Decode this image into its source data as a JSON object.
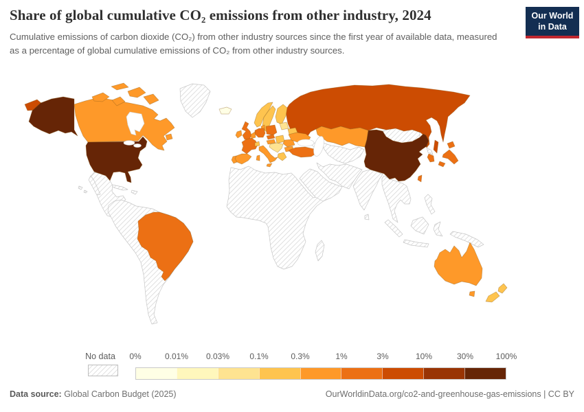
{
  "header": {
    "title": "Share of global cumulative CO₂ emissions from other industry, 2024",
    "subtitle": "Cumulative emissions of carbon dioxide (CO₂) from other industry sources since the first year of available data, measured as a percentage of global cumulative emissions of CO₂ from other industry sources.",
    "logo": {
      "line1": "Our World",
      "line2": "in Data",
      "bg_color": "#132e52",
      "accent_color": "#c0272f"
    }
  },
  "legend": {
    "no_data_label": "No data",
    "tick_labels": [
      "0%",
      "0.01%",
      "0.03%",
      "0.1%",
      "0.3%",
      "1%",
      "3%",
      "10%",
      "30%",
      "100%"
    ],
    "bin_colors": [
      "#ffffe5",
      "#fff7bc",
      "#fee391",
      "#fec44f",
      "#fe9929",
      "#ec7014",
      "#cc4c02",
      "#993404",
      "#662506"
    ]
  },
  "footer": {
    "source_label": "Data source:",
    "source_value": " Global Carbon Budget (2025)",
    "credit": "OurWorldinData.org/co2-and-greenhouse-gas-emissions | CC BY"
  },
  "map": {
    "no_data_border": "#c6c6c6",
    "colored_border": "#8a5a18",
    "water_border": "#cccccc",
    "regions": [
      {
        "id": "alaska",
        "bin": 8
      },
      {
        "id": "usa",
        "bin": 8
      },
      {
        "id": "china",
        "bin": 8
      },
      {
        "id": "russia",
        "bin": 6
      },
      {
        "id": "chukotka-west",
        "bin": 6
      },
      {
        "id": "sakhalin",
        "bin": 6
      },
      {
        "id": "canada",
        "bin": 4
      },
      {
        "id": "arctic-1",
        "bin": 4
      },
      {
        "id": "arctic-2",
        "bin": 4
      },
      {
        "id": "arctic-3",
        "bin": 4
      },
      {
        "id": "arctic-4",
        "bin": 4
      },
      {
        "id": "arctic-5",
        "bin": 4
      },
      {
        "id": "newfoundland",
        "bin": 4
      },
      {
        "id": "brazil",
        "bin": 5
      },
      {
        "id": "japan-hokkaido",
        "bin": 5
      },
      {
        "id": "japan-honshu",
        "bin": 5
      },
      {
        "id": "japan-kyushu",
        "bin": 5
      },
      {
        "id": "south-korea",
        "bin": 5
      },
      {
        "id": "taiwan",
        "bin": 5
      },
      {
        "id": "turkey",
        "bin": 5
      },
      {
        "id": "france",
        "bin": 5
      },
      {
        "id": "germany",
        "bin": 5
      },
      {
        "id": "poland",
        "bin": 5
      },
      {
        "id": "uk",
        "bin": 5
      },
      {
        "id": "czechia",
        "bin": 5
      },
      {
        "id": "kazakhstan",
        "bin": 4
      },
      {
        "id": "ukraine",
        "bin": 4
      },
      {
        "id": "australia",
        "bin": 4
      },
      {
        "id": "tasmania",
        "bin": 4
      },
      {
        "id": "spain",
        "bin": 4
      },
      {
        "id": "portugal",
        "bin": 4
      },
      {
        "id": "italy",
        "bin": 4
      },
      {
        "id": "sicily",
        "bin": 4
      },
      {
        "id": "sardinia",
        "bin": 4
      },
      {
        "id": "ireland",
        "bin": 4
      },
      {
        "id": "netherlands-belgium",
        "bin": 4
      },
      {
        "id": "denmark",
        "bin": 4
      },
      {
        "id": "austria",
        "bin": 4
      },
      {
        "id": "romania",
        "bin": 4
      },
      {
        "id": "bulgaria",
        "bin": 4
      },
      {
        "id": "norway",
        "bin": 3
      },
      {
        "id": "sweden",
        "bin": 3
      },
      {
        "id": "finland",
        "bin": 3
      },
      {
        "id": "greece",
        "bin": 3
      },
      {
        "id": "switzerland",
        "bin": 3
      },
      {
        "id": "belarus",
        "bin": 3
      },
      {
        "id": "slovakia-hungary",
        "bin": 3
      },
      {
        "id": "nz-north",
        "bin": 3
      },
      {
        "id": "nz-south",
        "bin": 3
      },
      {
        "id": "baltics",
        "bin": 2
      },
      {
        "id": "balkans",
        "bin": 2
      },
      {
        "id": "iceland",
        "bin": 0
      },
      {
        "id": "greenland",
        "bin": "no-data"
      },
      {
        "id": "mexico-central-america",
        "bin": "no-data"
      },
      {
        "id": "baja",
        "bin": "no-data"
      },
      {
        "id": "cuba",
        "bin": "no-data"
      },
      {
        "id": "hispaniola",
        "bin": "no-data"
      },
      {
        "id": "south-america",
        "bin": "no-data"
      },
      {
        "id": "africa",
        "bin": "no-data"
      },
      {
        "id": "madagascar",
        "bin": "no-data"
      },
      {
        "id": "arabia",
        "bin": "no-data"
      },
      {
        "id": "iran-region",
        "bin": "no-data"
      },
      {
        "id": "central-asia",
        "bin": "no-data"
      },
      {
        "id": "caucasus",
        "bin": "no-data"
      },
      {
        "id": "india",
        "bin": "no-data"
      },
      {
        "id": "sri-lanka",
        "bin": "no-data"
      },
      {
        "id": "mongolia",
        "bin": "no-data"
      },
      {
        "id": "north-korea",
        "bin": "no-data"
      },
      {
        "id": "se-asia",
        "bin": "no-data"
      },
      {
        "id": "sumatra",
        "bin": "no-data"
      },
      {
        "id": "java",
        "bin": "no-data"
      },
      {
        "id": "borneo",
        "bin": "no-data"
      },
      {
        "id": "sulawesi",
        "bin": "no-data"
      },
      {
        "id": "new-guinea",
        "bin": "no-data"
      },
      {
        "id": "philippines",
        "bin": "no-data"
      },
      {
        "id": "hawaii-1",
        "bin": "no-data"
      },
      {
        "id": "hawaii-2",
        "bin": "no-data"
      }
    ]
  },
  "chart_data": {
    "type": "choropleth",
    "title": "Share of global cumulative CO₂ emissions from other industry, 2024",
    "unit": "% of global cumulative CO₂ emissions from other industry",
    "legend_bins": [
      {
        "range": "0–0.01%",
        "color": "#ffffe5"
      },
      {
        "range": "0.01–0.03%",
        "color": "#fff7bc"
      },
      {
        "range": "0.03–0.1%",
        "color": "#fee391"
      },
      {
        "range": "0.1–0.3%",
        "color": "#fec44f"
      },
      {
        "range": "0.3–1%",
        "color": "#fe9929"
      },
      {
        "range": "1–3%",
        "color": "#ec7014"
      },
      {
        "range": "3–10%",
        "color": "#cc4c02"
      },
      {
        "range": "10–30%",
        "color": "#993404"
      },
      {
        "range": "30–100%",
        "color": "#662506"
      },
      {
        "range": "No data",
        "color": "hatched"
      }
    ],
    "entities": [
      {
        "entity": "United States",
        "bin": "30–100%"
      },
      {
        "entity": "China",
        "bin": "30–100%"
      },
      {
        "entity": "Russia",
        "bin": "3–10%"
      },
      {
        "entity": "Brazil",
        "bin": "1–3%"
      },
      {
        "entity": "Japan",
        "bin": "1–3%"
      },
      {
        "entity": "South Korea",
        "bin": "1–3%"
      },
      {
        "entity": "Taiwan",
        "bin": "1–3%"
      },
      {
        "entity": "Turkey",
        "bin": "1–3%"
      },
      {
        "entity": "France",
        "bin": "1–3%"
      },
      {
        "entity": "Germany",
        "bin": "1–3%"
      },
      {
        "entity": "United Kingdom",
        "bin": "1–3%"
      },
      {
        "entity": "Poland",
        "bin": "1–3%"
      },
      {
        "entity": "Czechia",
        "bin": "1–3%"
      },
      {
        "entity": "Canada",
        "bin": "0.3–1%"
      },
      {
        "entity": "Australia",
        "bin": "0.3–1%"
      },
      {
        "entity": "Kazakhstan",
        "bin": "0.3–1%"
      },
      {
        "entity": "Ukraine",
        "bin": "0.3–1%"
      },
      {
        "entity": "Spain",
        "bin": "0.3–1%"
      },
      {
        "entity": "Portugal",
        "bin": "0.3–1%"
      },
      {
        "entity": "Italy",
        "bin": "0.3–1%"
      },
      {
        "entity": "Ireland",
        "bin": "0.3–1%"
      },
      {
        "entity": "Austria",
        "bin": "0.3–1%"
      },
      {
        "entity": "Romania",
        "bin": "0.3–1%"
      },
      {
        "entity": "Bulgaria",
        "bin": "0.3–1%"
      },
      {
        "entity": "Norway",
        "bin": "0.1–0.3%"
      },
      {
        "entity": "Sweden",
        "bin": "0.1–0.3%"
      },
      {
        "entity": "Finland",
        "bin": "0.1–0.3%"
      },
      {
        "entity": "Greece",
        "bin": "0.1–0.3%"
      },
      {
        "entity": "Switzerland",
        "bin": "0.1–0.3%"
      },
      {
        "entity": "Belarus",
        "bin": "0.1–0.3%"
      },
      {
        "entity": "Hungary",
        "bin": "0.1–0.3%"
      },
      {
        "entity": "New Zealand",
        "bin": "0.1–0.3%"
      },
      {
        "entity": "Baltic states",
        "bin": "0.03–0.1%"
      },
      {
        "entity": "Western Balkans",
        "bin": "0.03–0.1%"
      },
      {
        "entity": "Iceland",
        "bin": "0–0.01%"
      },
      {
        "entity": "Greenland",
        "bin": "No data"
      },
      {
        "entity": "Mexico and Central America",
        "bin": "No data"
      },
      {
        "entity": "South America (except Brazil)",
        "bin": "No data"
      },
      {
        "entity": "Africa",
        "bin": "No data"
      },
      {
        "entity": "Middle East",
        "bin": "No data"
      },
      {
        "entity": "India",
        "bin": "No data"
      },
      {
        "entity": "Mongolia",
        "bin": "No data"
      },
      {
        "entity": "North Korea",
        "bin": "No data"
      },
      {
        "entity": "Southeast Asia",
        "bin": "No data"
      },
      {
        "entity": "Indonesia",
        "bin": "No data"
      },
      {
        "entity": "Philippines",
        "bin": "No data"
      },
      {
        "entity": "Papua New Guinea",
        "bin": "No data"
      }
    ]
  }
}
